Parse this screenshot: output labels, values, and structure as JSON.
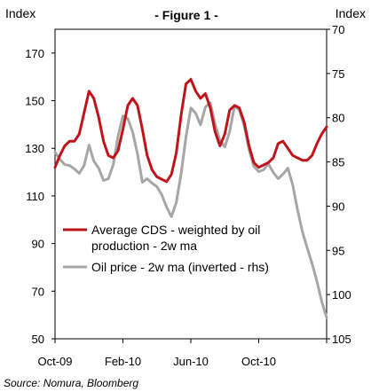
{
  "header": {
    "left_label": "Index",
    "right_label": "Index",
    "title": "- Figure 1 -"
  },
  "source": "Source: Nomura, Bloomberg",
  "chart_data": {
    "type": "line",
    "x_ticks": [
      "Oct-09",
      "Feb-10",
      "Jun-10",
      "Oct-10"
    ],
    "y_left": {
      "min": 50,
      "max": 180,
      "ticks": [
        50,
        70,
        90,
        110,
        130,
        150,
        170
      ]
    },
    "y_right": {
      "min": 70,
      "max": 105,
      "inverted": true,
      "ticks": [
        70,
        75,
        80,
        85,
        90,
        95,
        100,
        105
      ]
    },
    "grid": false,
    "legend_placement": "bottom-left (inside plot)",
    "series": [
      {
        "name": "Average CDS - weighted by oil production - 2w ma",
        "color": "#c0141b",
        "axis": "left",
        "values": [
          122,
          127,
          131,
          133,
          133,
          136,
          145,
          154,
          151,
          143,
          133,
          127,
          126,
          129,
          138,
          148,
          151,
          148,
          138,
          127,
          121,
          118,
          117,
          116,
          119,
          128,
          144,
          157,
          159,
          154,
          151,
          153,
          147,
          137,
          131,
          136,
          146,
          148,
          147,
          141,
          131,
          124,
          122,
          123,
          124,
          126,
          132,
          133,
          130,
          127,
          126,
          125,
          125,
          127,
          132,
          136,
          139
        ]
      },
      {
        "name": "Oil price - 2w ma (inverted - rhs)",
        "color": "#a6a6a6",
        "axis": "right",
        "values": [
          83.9,
          84.7,
          85.3,
          85.4,
          85.8,
          86.3,
          85.4,
          83.1,
          84.9,
          85.7,
          87.1,
          86.9,
          85.3,
          82.1,
          79.8,
          80.1,
          81.6,
          84.1,
          87.3,
          86.9,
          87.4,
          87.8,
          88.7,
          90.1,
          91.2,
          89.6,
          86.3,
          82.2,
          78.9,
          79.5,
          80.8,
          78.8,
          78.3,
          80.7,
          82.6,
          83.3,
          81.6,
          78.7,
          79.1,
          80.9,
          83.6,
          85.5,
          86.1,
          85.9,
          85.2,
          86.2,
          86.9,
          86.4,
          85.7,
          87.6,
          90.4,
          92.9,
          94.7,
          96.5,
          98.5,
          100.8,
          102.6
        ]
      }
    ]
  }
}
